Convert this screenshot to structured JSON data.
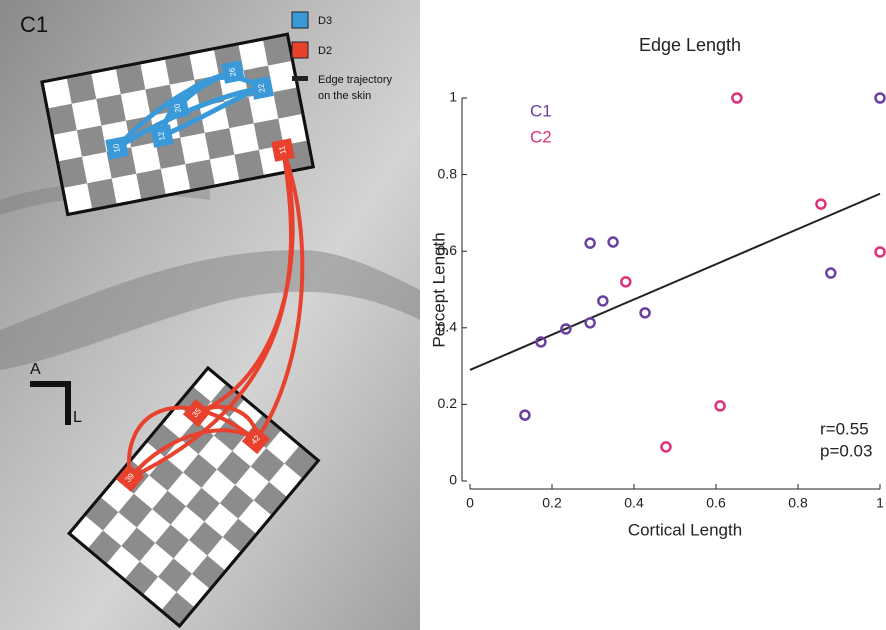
{
  "panel_label": "C1",
  "legend": [
    {
      "label": "D3",
      "color": "#3a9ad9"
    },
    {
      "label": "D2",
      "color": "#e8412e"
    },
    {
      "lines": [
        "Edge trajectory",
        "on the skin"
      ],
      "color": "#222222"
    }
  ],
  "electrodes": {
    "d3": [
      "10",
      "12",
      "20",
      "26",
      "22"
    ],
    "d2": [
      "11",
      "35",
      "42",
      "39"
    ]
  },
  "orientation": {
    "anterior": "A",
    "lateral": "L"
  },
  "chart_data": {
    "type": "scatter",
    "title": "Edge Length",
    "xlabel": "Cortical Length",
    "ylabel": "Percept Length",
    "series": [
      {
        "name": "C1",
        "color": "#6b3fa0",
        "x": [
          0.134,
          0.173,
          0.234,
          0.293,
          0.293,
          0.324,
          0.349,
          0.427,
          0.88,
          1
        ],
        "values": [
          0.172,
          0.363,
          0.397,
          0.621,
          0.413,
          0.47,
          0.624,
          0.439,
          0.543,
          1
        ]
      },
      {
        "name": "C2",
        "color": "#e0307a",
        "x": [
          0.38,
          0.478,
          0.61,
          0.651,
          0.856,
          1
        ],
        "values": [
          0.52,
          0.089,
          0.196,
          1,
          0.723,
          0.598
        ]
      }
    ],
    "fit": {
      "x": [
        0,
        1
      ],
      "values": [
        0.29,
        0.75
      ],
      "color": "#222222"
    },
    "annotations": [
      "r=0.55",
      "p=0.03"
    ],
    "xlim": [
      0,
      1
    ],
    "ylim": [
      0,
      1
    ],
    "xticks": [
      0,
      0.2,
      0.4,
      0.6,
      0.8,
      1
    ],
    "yticks": [
      0,
      0.2,
      0.4,
      0.6,
      0.8,
      1
    ]
  }
}
